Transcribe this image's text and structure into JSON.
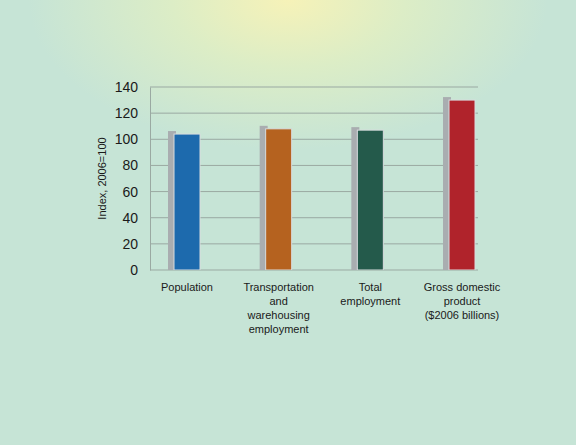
{
  "chart_data": {
    "type": "bar",
    "y_label": "Index, 2006=100",
    "categories": [
      "Population",
      "Transportation\nand\nwarehousing\nemployment",
      "Total\nemployment",
      "Gross domestic\nproduct\n($2006 billions)"
    ],
    "values": [
      104,
      108,
      107,
      130
    ],
    "colors": [
      "#1d6aad",
      "#b5621f",
      "#245a4b",
      "#b0232b"
    ],
    "ylim": [
      0,
      140
    ],
    "yticks": [
      0,
      20,
      40,
      60,
      80,
      100,
      120,
      140
    ],
    "grid": true
  }
}
